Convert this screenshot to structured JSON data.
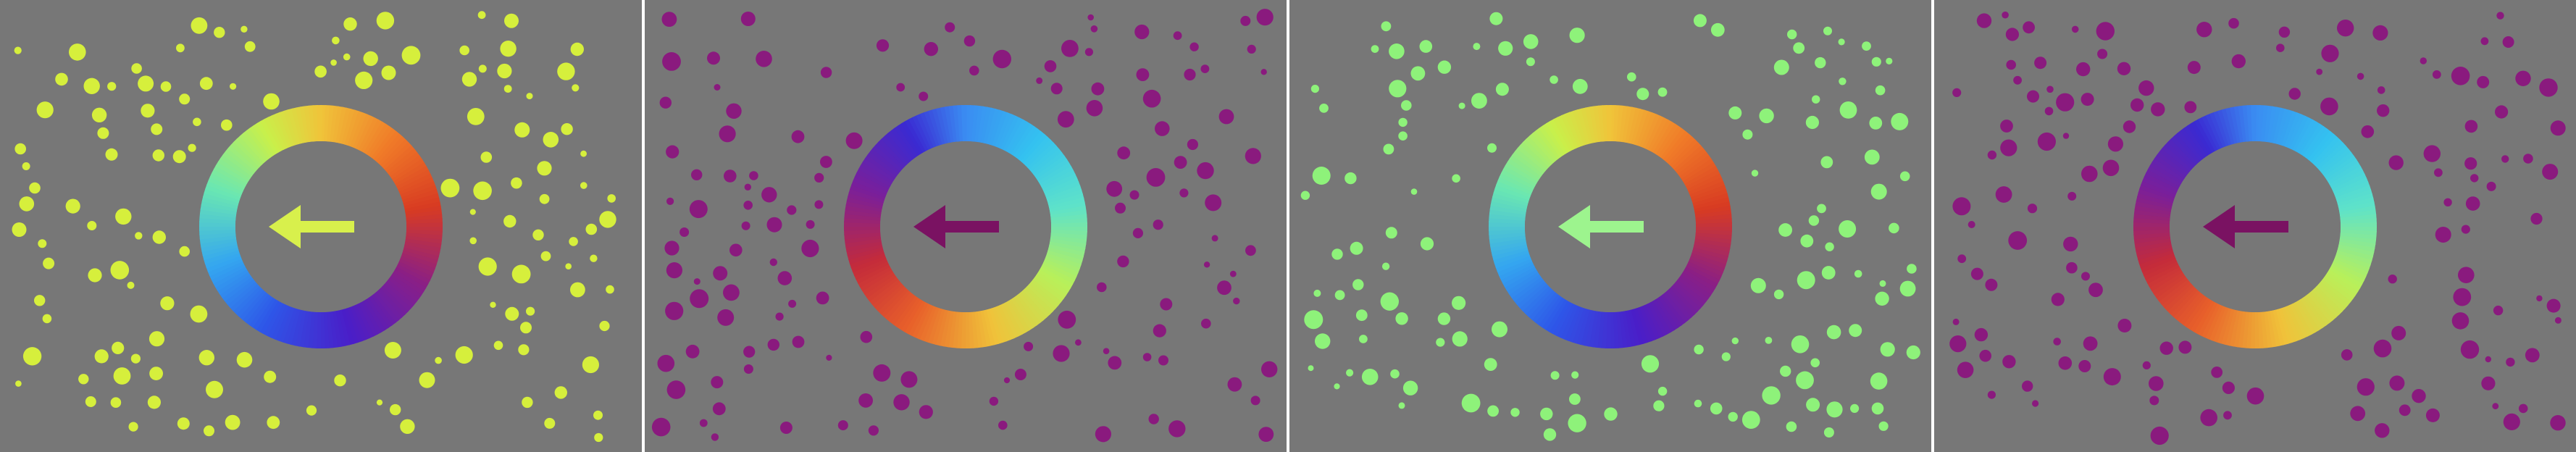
{
  "colors": {
    "background": "#777777",
    "separator": "#ffffff",
    "dots_yellow": "#d6ef3c",
    "dots_magenta": "#8a1a7e",
    "dots_green": "#8ef27a",
    "arrow_yellow": "#d8f04c",
    "arrow_magenta": "#7a1262",
    "arrow_green": "#9df48e"
  },
  "panels": [
    {
      "id": "panel-1",
      "dot_color": "yellow",
      "ring": "rainbow-warm-top-right",
      "arrow": {
        "direction": "left",
        "color": "yellow"
      }
    },
    {
      "id": "panel-2",
      "dot_color": "magenta",
      "ring": "rainbow-cool-top",
      "arrow": {
        "direction": "left",
        "color": "magenta"
      }
    },
    {
      "id": "panel-3",
      "dot_color": "green",
      "ring": "rainbow-warm-top-right",
      "arrow": {
        "direction": "left",
        "color": "green"
      }
    },
    {
      "id": "panel-4",
      "dot_color": "magenta",
      "ring": "rainbow-cool-top",
      "arrow": {
        "direction": "left",
        "color": "magenta"
      }
    }
  ]
}
